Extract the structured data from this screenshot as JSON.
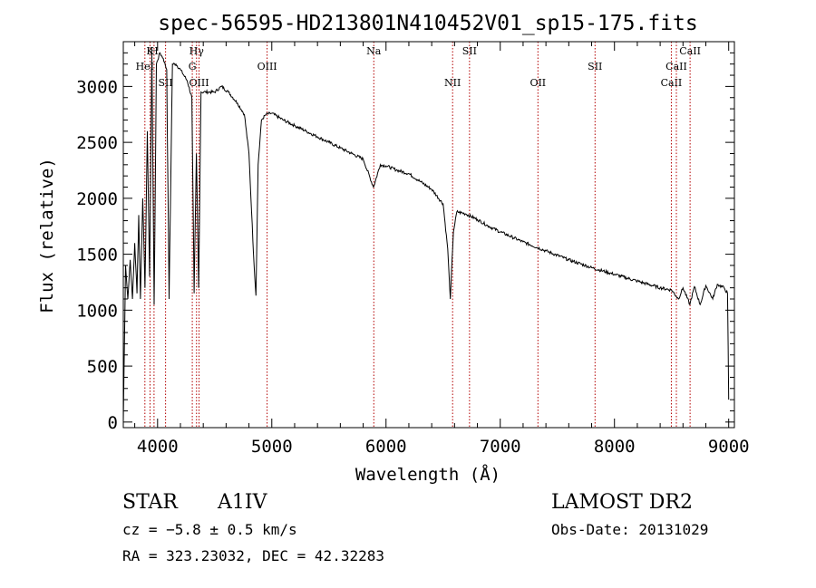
{
  "chart_data": {
    "type": "line",
    "title": "spec-56595-HD213801N410452V01_sp15-175.fits",
    "xlabel": "Wavelength (Å)",
    "ylabel": "Flux (relative)",
    "xlim": [
      3700,
      9050
    ],
    "ylim": [
      -50,
      3400
    ],
    "x_ticks": [
      4000,
      5000,
      6000,
      7000,
      8000,
      9000
    ],
    "y_ticks": [
      0,
      500,
      1000,
      1500,
      2000,
      2500,
      3000
    ],
    "line_color": "#000000",
    "marker_color": "#b30000",
    "grid": false,
    "series": [
      {
        "x": [
          3700,
          3720,
          3740,
          3760,
          3780,
          3800,
          3820,
          3835,
          3850,
          3870,
          3890,
          3910,
          3930,
          3950,
          3970,
          3990,
          4020,
          4050,
          4080,
          4101,
          4130,
          4160,
          4200,
          4260,
          4300,
          4320,
          4340,
          4360,
          4380,
          4420,
          4460,
          4500,
          4560,
          4620,
          4700,
          4760,
          4800,
          4840,
          4861,
          4880,
          4910,
          4950,
          5000,
          5100,
          5200,
          5300,
          5400,
          5500,
          5600,
          5700,
          5800,
          5890,
          5950,
          6000,
          6100,
          6200,
          6300,
          6400,
          6500,
          6540,
          6563,
          6590,
          6620,
          6700,
          6800,
          6900,
          7000,
          7200,
          7400,
          7600,
          7800,
          8000,
          8200,
          8400,
          8500,
          8560,
          8600,
          8660,
          8700,
          8750,
          8800,
          8860,
          8900,
          8960,
          8990,
          9000
        ],
        "y": [
          0,
          1400,
          1100,
          1450,
          1100,
          1600,
          1150,
          1850,
          1100,
          2000,
          1200,
          2600,
          1300,
          3300,
          1050,
          3200,
          3300,
          3250,
          3150,
          1100,
          3200,
          3200,
          3150,
          3050,
          2900,
          1150,
          2400,
          1200,
          2950,
          2950,
          2950,
          2950,
          3000,
          2950,
          2850,
          2750,
          2400,
          1500,
          1130,
          2300,
          2700,
          2750,
          2760,
          2700,
          2650,
          2600,
          2550,
          2500,
          2450,
          2400,
          2350,
          2100,
          2300,
          2290,
          2250,
          2220,
          2150,
          2080,
          1950,
          1550,
          1100,
          1700,
          1880,
          1860,
          1810,
          1750,
          1700,
          1610,
          1530,
          1450,
          1380,
          1320,
          1260,
          1200,
          1180,
          1100,
          1200,
          1050,
          1210,
          1050,
          1220,
          1100,
          1230,
          1200,
          1150,
          200
        ]
      }
    ],
    "lines": [
      {
        "x": 3889,
        "label": "HeI",
        "row": 1
      },
      {
        "x": 3934,
        "label": "K",
        "row": 0
      },
      {
        "x": 3969,
        "label": "H",
        "row": 0
      },
      {
        "x": 4070,
        "label": "SII",
        "row": 2
      },
      {
        "x": 4304,
        "label": "G",
        "row": 1
      },
      {
        "x": 4341,
        "label": "Hγ",
        "row": 0
      },
      {
        "x": 4363,
        "label": "OIII",
        "row": 2
      },
      {
        "x": 4959,
        "label": "OIII",
        "row": 1
      },
      {
        "x": 5893,
        "label": "Na",
        "row": 0
      },
      {
        "x": 6583,
        "label": "NII",
        "row": 2
      },
      {
        "x": 6731,
        "label": "SII",
        "row": 0
      },
      {
        "x": 7330,
        "label": "OII",
        "row": 2
      },
      {
        "x": 7830,
        "label": "SII",
        "row": 1
      },
      {
        "x": 8498,
        "label": "CaII",
        "row": 2
      },
      {
        "x": 8542,
        "label": "CaII",
        "row": 1
      },
      {
        "x": 8662,
        "label": "CaII",
        "row": 0
      }
    ]
  },
  "info": {
    "object_class": "STAR",
    "subclass": "A1IV",
    "survey": "LAMOST DR2",
    "redshift": "cz = −5.8 ± 0.5 km/s",
    "obs_date": "Obs-Date: 20131029",
    "coords": "RA = 323.23032, DEC =  42.32283"
  }
}
